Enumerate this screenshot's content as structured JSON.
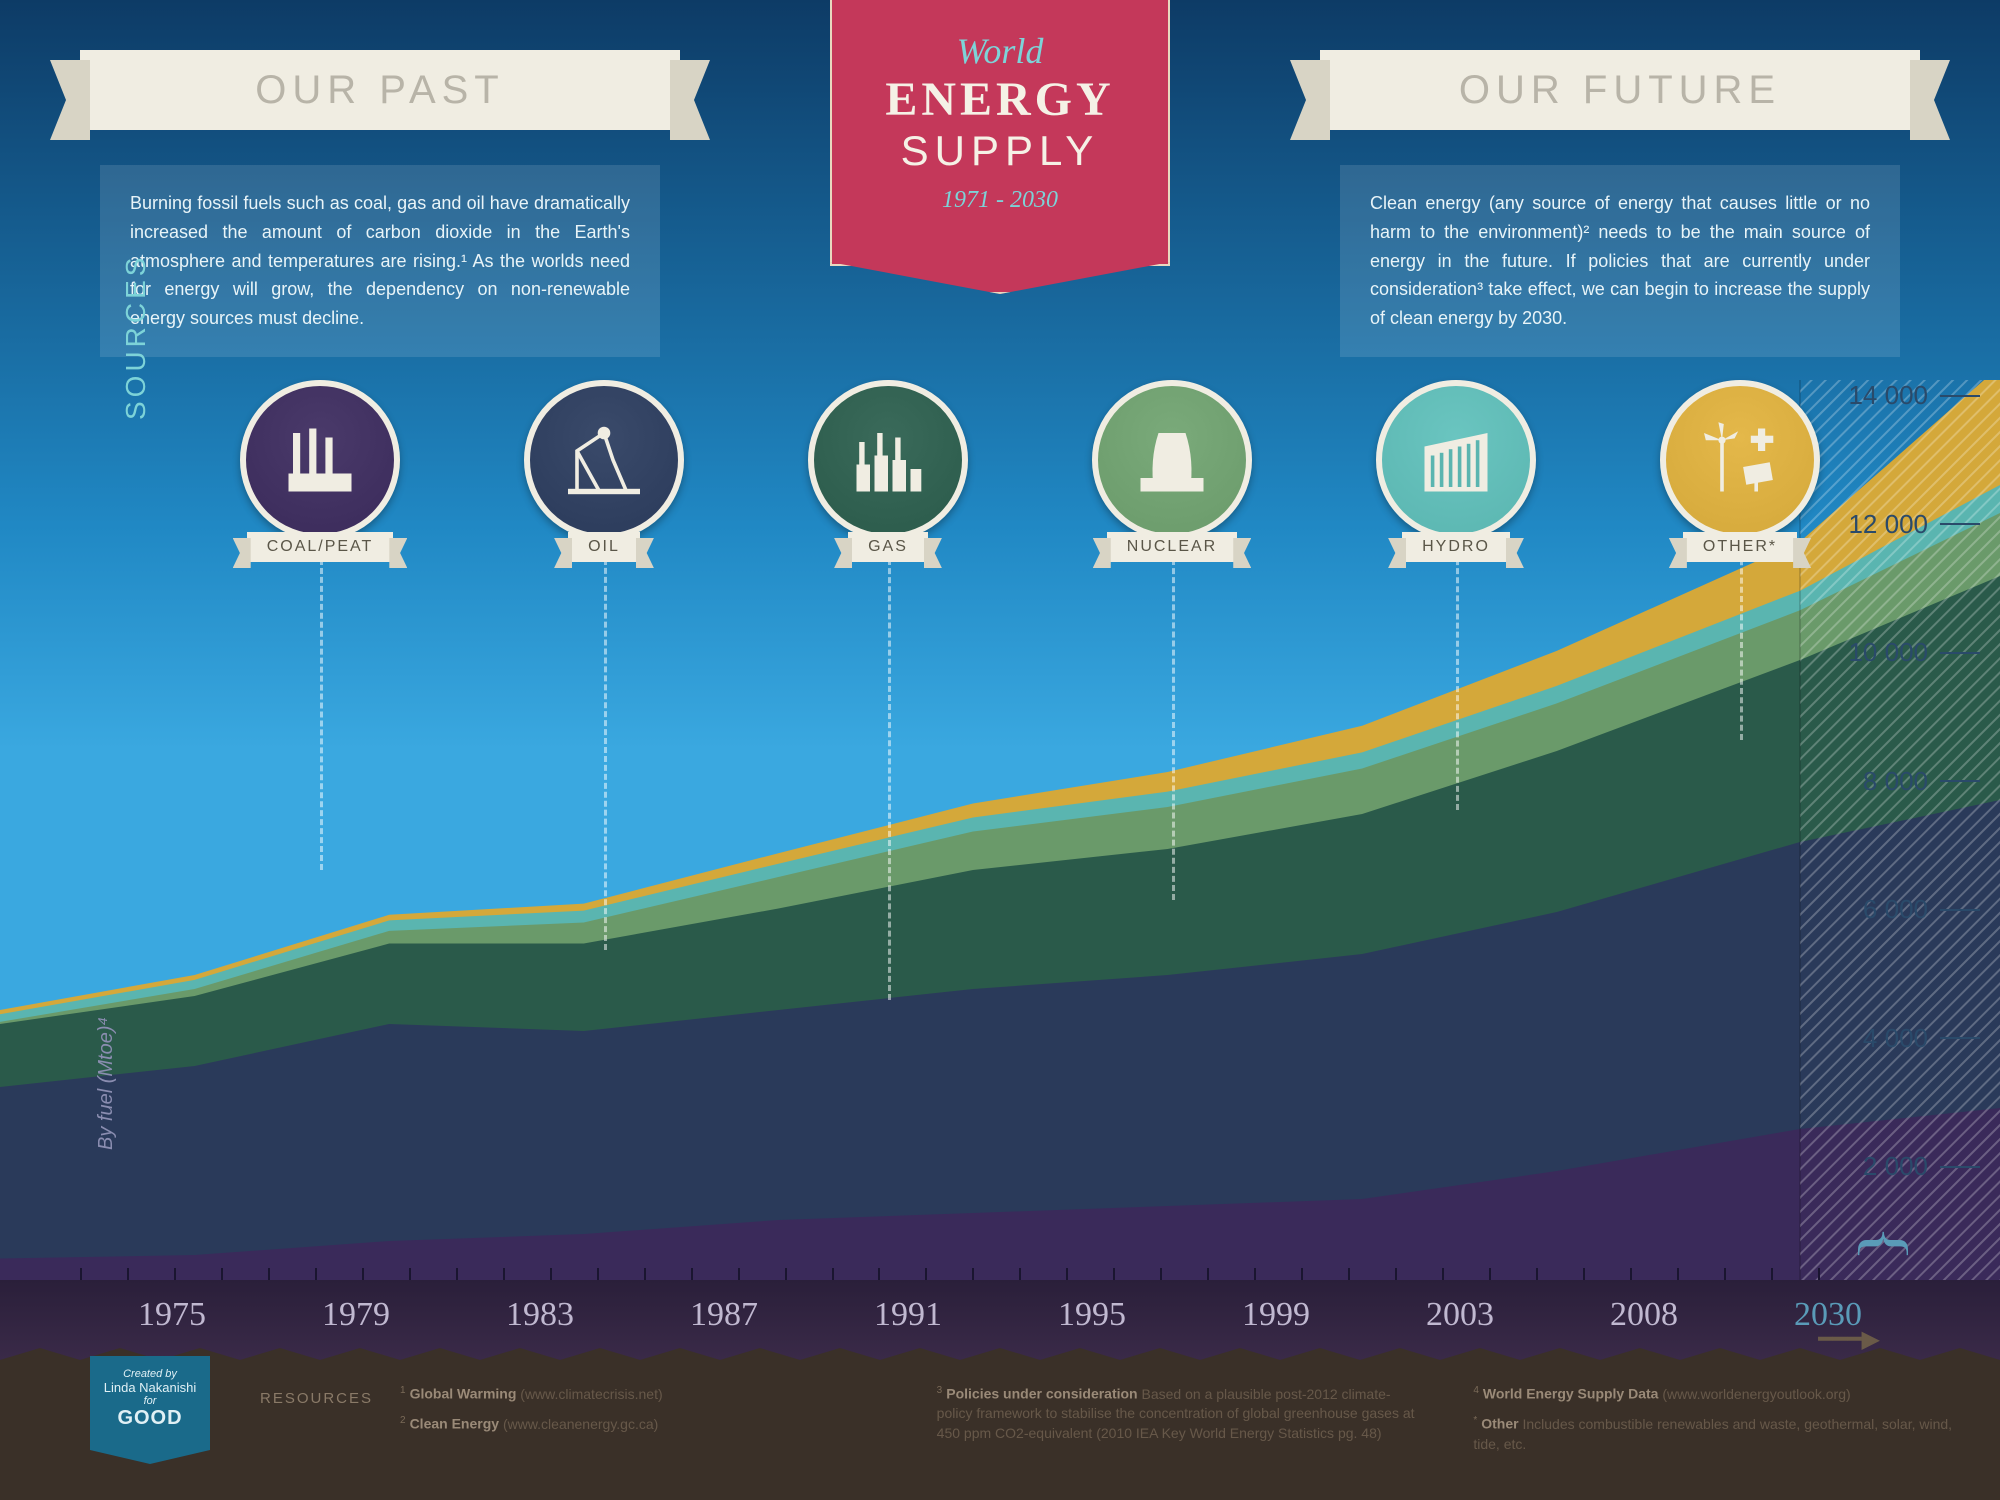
{
  "title": {
    "script": "World",
    "main": "ENERGY",
    "sub": "SUPPLY",
    "years": "1971 - 2030",
    "main_fontsize": 48,
    "sub_fontsize": 42,
    "bg_color": "#c4385a",
    "accent_color": "#7dd3d8"
  },
  "banners": {
    "past": "OUR PAST",
    "future": "OUR FUTURE",
    "fontsize": 40,
    "bg_color": "#f0ede2",
    "text_color": "#b8b4a8"
  },
  "textboxes": {
    "past": "Burning fossil fuels such as coal, gas and oil have dramatically increased the amount of carbon dioxide in the Earth's atmosphere and temperatures are rising.¹ As the worlds need for energy will grow, the dependency on non-renewable energy sources must decline.",
    "future": "Clean energy (any source of energy that causes little or no harm to the environment)² needs to be the main source of energy in the future. If policies that are currently under consideration³ take effect, we can begin to increase the supply of clean energy by 2030."
  },
  "sources_label": "SOURCES",
  "ylabel": "By fuel (Mtoe)⁴",
  "sources": [
    {
      "label": "COAL/PEAT",
      "color": "#3a2a5a",
      "gradient_top": "#4a3a6a"
    },
    {
      "label": "OIL",
      "color": "#2a3a5a",
      "gradient_top": "#3a4a6a"
    },
    {
      "label": "GAS",
      "color": "#2a5a4a",
      "gradient_top": "#3a6a5a"
    },
    {
      "label": "NUCLEAR",
      "color": "#6a9a6a",
      "gradient_top": "#7aaa7a"
    },
    {
      "label": "HYDRO",
      "color": "#5ab5b0",
      "gradient_top": "#6ac5c0"
    },
    {
      "label": "OTHER*",
      "color": "#d4a83a",
      "gradient_top": "#e4b84a"
    }
  ],
  "chart": {
    "type": "stacked-area",
    "x_start": 1971,
    "x_end_history": 2008,
    "x_end_future": 2030,
    "ylim": [
      0,
      14000
    ],
    "ytick_step": 2000,
    "yticks": [
      "2 000",
      "4 000",
      "6 000",
      "8 000",
      "10 000",
      "12 000",
      "14 000"
    ],
    "xticks_major": [
      "1975",
      "1979",
      "1983",
      "1987",
      "1991",
      "1995",
      "1999",
      "2003",
      "2008",
      "2030"
    ],
    "xtick_minor_count": 38,
    "series_colors": {
      "coal": "#3a2a5a",
      "oil": "#2a3a5a",
      "gas": "#2a5a4a",
      "nuclear": "#6a9a6a",
      "hydro": "#5ab5b0",
      "other": "#d4a83a"
    },
    "data_points": {
      "years": [
        1971,
        1975,
        1979,
        1983,
        1987,
        1991,
        1995,
        1999,
        2003,
        2008,
        2030
      ],
      "coal": [
        1450,
        1500,
        1700,
        1800,
        2000,
        2100,
        2200,
        2300,
        2700,
        3300,
        3600
      ],
      "oil": [
        2450,
        2700,
        3100,
        2900,
        3000,
        3200,
        3300,
        3500,
        3700,
        4100,
        4400
      ],
      "gas": [
        900,
        1000,
        1150,
        1250,
        1450,
        1700,
        1800,
        2000,
        2300,
        2600,
        3200
      ],
      "nuclear": [
        30,
        100,
        180,
        300,
        450,
        550,
        600,
        650,
        680,
        710,
        900
      ],
      "hydro": [
        110,
        130,
        150,
        170,
        190,
        200,
        220,
        230,
        250,
        280,
        400
      ],
      "other": [
        60,
        70,
        80,
        100,
        150,
        200,
        280,
        380,
        500,
        700,
        1700
      ]
    },
    "background_sky": "#3aa8e0",
    "future_hatch_opacity": 0.3
  },
  "footer": {
    "resources_label": "RESOURCES",
    "credit_by": "Created by",
    "credit_name": "Linda Nakanishi",
    "credit_for": "for",
    "credit_brand": "GOOD",
    "refs": [
      {
        "num": "1",
        "title": "Global Warming",
        "detail": "(www.climatecrisis.net)"
      },
      {
        "num": "2",
        "title": "Clean Energy",
        "detail": "(www.cleanenergy.gc.ca)"
      },
      {
        "num": "3",
        "title": "Policies under consideration",
        "detail": "Based on a plausible post-2012 climate-policy framework to stabilise the concentration of global greenhouse gases at 450 ppm CO2-equivalent (2010 IEA Key World Energy Statistics pg. 48)"
      },
      {
        "num": "4",
        "title": "World Energy Supply Data",
        "detail": "(www.worldenergyoutlook.org)"
      },
      {
        "num": "*",
        "title": "Other",
        "detail": "Includes combustible renewables and waste, geothermal, solar, wind, tide, etc."
      }
    ],
    "bg_color": "#3a3028"
  }
}
